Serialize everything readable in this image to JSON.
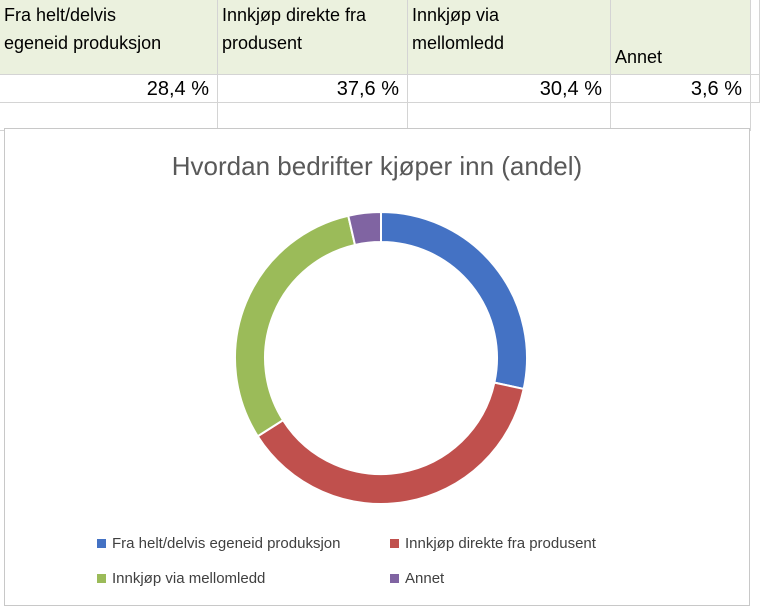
{
  "table": {
    "headers": [
      [
        "Fra helt/delvis",
        "egeneid produksjon"
      ],
      [
        "Innkjøp direkte fra",
        "produsent"
      ],
      [
        "Innkjøp via",
        "mellomledd"
      ],
      [
        "",
        "Annet"
      ]
    ],
    "values": [
      "28,4 %",
      "37,6 %",
      "30,4 %",
      "3,6 %"
    ]
  },
  "colors": {
    "header_fill": "#ebf1de",
    "series": [
      "#4472c4",
      "#c0504d",
      "#9bbb59",
      "#8064a2"
    ]
  },
  "chart_data": {
    "type": "pie",
    "style": "donut",
    "title": "Hvordan bedrifter kjøper inn (andel)",
    "categories": [
      "Fra helt/delvis egeneid produksjon",
      "Innkjøp direkte fra produsent",
      "Innkjøp via mellomledd",
      "Annet"
    ],
    "values": [
      28.4,
      37.6,
      30.4,
      3.6
    ],
    "legend_position": "bottom"
  }
}
